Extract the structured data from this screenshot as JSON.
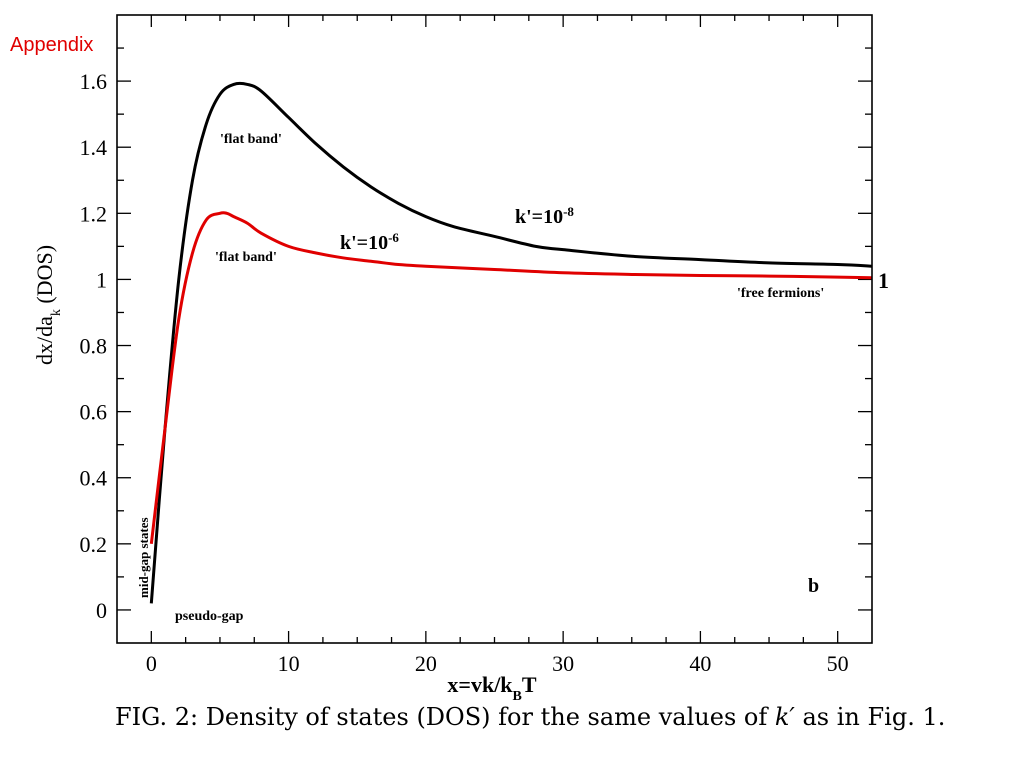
{
  "page": {
    "appendix_label": "Appendix",
    "caption_prefix": "FIG. 2: Density of states (DOS) for the same values of ",
    "caption_symbol": "k′",
    "caption_suffix": " as in Fig. 1."
  },
  "chart_data": {
    "type": "line",
    "xlabel": "x=vk/k_B T",
    "ylabel": "dx/da_k  (DOS)",
    "xlim": [
      -2.5,
      52.5
    ],
    "ylim": [
      -0.1,
      1.8
    ],
    "x_ticks": [
      0,
      10,
      20,
      30,
      40,
      50
    ],
    "y_ticks": [
      0,
      0.2,
      0.4,
      0.6,
      0.8,
      1,
      1.2,
      1.4,
      1.6
    ],
    "x_tick_labels": [
      "0",
      "10",
      "20",
      "30",
      "40",
      "50"
    ],
    "y_tick_labels": [
      "0",
      "0.2",
      "0.4",
      "0.6",
      "0.8",
      "1",
      "1.2",
      "1.4",
      "1.6"
    ],
    "grid": false,
    "series": [
      {
        "name": "k'=10^-8",
        "color": "#000000",
        "x": [
          0,
          1,
          2,
          3,
          4,
          5,
          6,
          7,
          8,
          10,
          12,
          14,
          16,
          18,
          20,
          22,
          25,
          28,
          30,
          35,
          40,
          45,
          50,
          52.5
        ],
        "y": [
          0.02,
          0.55,
          1.0,
          1.3,
          1.47,
          1.56,
          1.59,
          1.59,
          1.57,
          1.49,
          1.41,
          1.34,
          1.28,
          1.23,
          1.19,
          1.16,
          1.13,
          1.1,
          1.09,
          1.07,
          1.06,
          1.05,
          1.045,
          1.04
        ]
      },
      {
        "name": "k'=10^-6",
        "color": "#e00000",
        "x": [
          0,
          1,
          2,
          3,
          4,
          5,
          5.5,
          6,
          7,
          8,
          10,
          12,
          14,
          16,
          18,
          20,
          25,
          30,
          35,
          40,
          45,
          50,
          52.5
        ],
        "y": [
          0.2,
          0.55,
          0.88,
          1.08,
          1.18,
          1.2,
          1.2,
          1.19,
          1.17,
          1.14,
          1.1,
          1.08,
          1.065,
          1.055,
          1.045,
          1.04,
          1.03,
          1.02,
          1.015,
          1.012,
          1.01,
          1.007,
          1.005
        ]
      }
    ],
    "annotations": {
      "label_black_curve": {
        "text_base": "k'=10",
        "text_exp": "-8"
      },
      "label_red_curve": {
        "text_base": "k'=10",
        "text_exp": "-6"
      },
      "flat_band_upper": "'flat band'",
      "flat_band_lower": "'flat band'",
      "free_fermions": "'free fermions'",
      "mid_gap_states": "mid-gap states",
      "pseudo_gap": "pseudo-gap",
      "panel_letter": "b",
      "right_value": "1"
    }
  }
}
